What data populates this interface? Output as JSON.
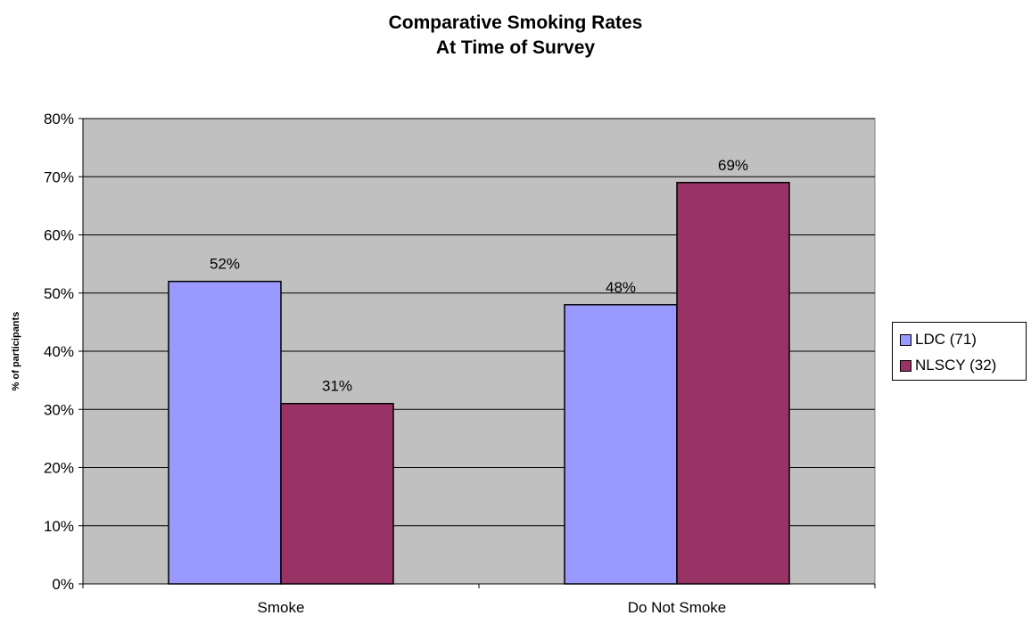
{
  "chart_data": {
    "type": "bar",
    "title": [
      "Comparative Smoking Rates",
      "At Time of Survey"
    ],
    "ylabel": "% of participants",
    "xlabel": "",
    "categories": [
      "Smoke",
      "Do Not Smoke"
    ],
    "series": [
      {
        "name": "LDC (71)",
        "values": [
          52,
          48
        ],
        "labels": [
          "52%",
          "48%"
        ],
        "color": "#9999ff"
      },
      {
        "name": "NLSCY (32)",
        "values": [
          31,
          69
        ],
        "labels": [
          "31%",
          "69%"
        ],
        "color": "#993366"
      }
    ],
    "ylim": [
      0,
      80
    ],
    "yticks": [
      0,
      10,
      20,
      30,
      40,
      50,
      60,
      70,
      80
    ],
    "ytick_labels": [
      "0%",
      "10%",
      "20%",
      "30%",
      "40%",
      "50%",
      "60%",
      "70%",
      "80%"
    ],
    "plot_background": "#c0c0c0",
    "grid": true,
    "legend_position": "right"
  }
}
